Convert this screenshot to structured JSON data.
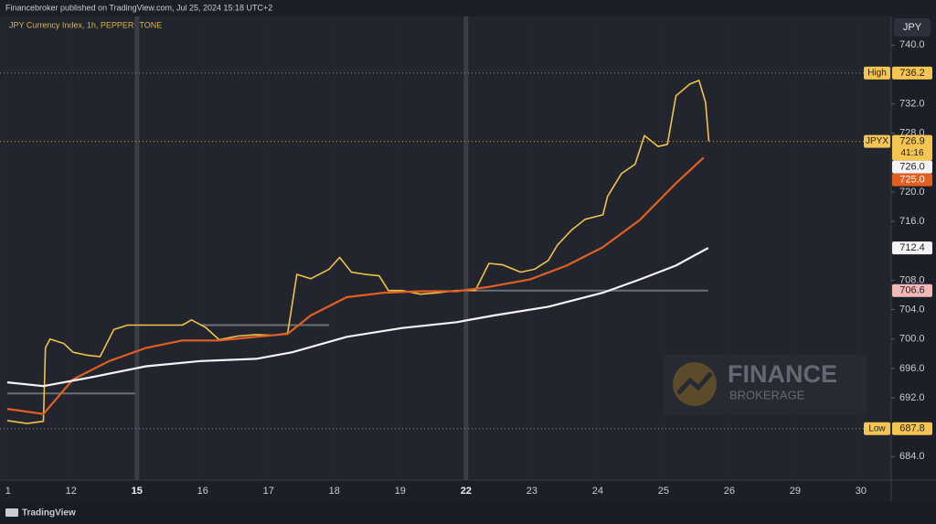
{
  "chart_data": {
    "type": "line",
    "header": "Financebroker published on TradingView.com, Jul 25, 2024 15:18 UTC+2",
    "title": "JPY Currency Index, 1h, PEPPERSTONE",
    "currency": "JPY",
    "footer": "TradingView",
    "watermark": [
      "FINANCE",
      "BROKERAGE"
    ],
    "xlim": [
      -0.08,
      13.46
    ],
    "xticks": [
      {
        "value": 0,
        "label": "1"
      },
      {
        "value": 1,
        "label": "12"
      },
      {
        "value": 2,
        "label": "15"
      },
      {
        "value": 3,
        "label": "16"
      },
      {
        "value": 4,
        "label": "17"
      },
      {
        "value": 5,
        "label": "18"
      },
      {
        "value": 6,
        "label": "19"
      },
      {
        "value": 7,
        "label": "22"
      },
      {
        "value": 8,
        "label": "23"
      },
      {
        "value": 9,
        "label": "24"
      },
      {
        "value": 10,
        "label": "25"
      },
      {
        "value": 11,
        "label": "26"
      },
      {
        "value": 12,
        "label": "29"
      },
      {
        "value": 13,
        "label": "30"
      }
    ],
    "ylim": [
      680.8,
      743.9
    ],
    "yticks": [
      {
        "value": 740,
        "label": "740.0"
      },
      {
        "value": 732,
        "label": "732.0"
      },
      {
        "value": 728,
        "label": "728.0"
      },
      {
        "value": 720,
        "label": "720.0"
      },
      {
        "value": 716,
        "label": "716.0"
      },
      {
        "value": 708,
        "label": "708.0"
      },
      {
        "value": 704,
        "label": "704.0"
      },
      {
        "value": 700,
        "label": "700.0"
      },
      {
        "value": 696,
        "label": "696.0"
      },
      {
        "value": 692,
        "label": "692.0"
      },
      {
        "value": 684,
        "label": "684.0"
      }
    ],
    "series": [
      {
        "name": "JPYX",
        "color": "#f0c24a",
        "x": [
          0.03,
          0.33,
          0.58,
          0.61,
          0.68,
          0.89,
          1.03,
          1.24,
          1.44,
          1.65,
          1.86,
          2.14,
          2.42,
          2.69,
          2.83,
          3.04,
          3.25,
          3.53,
          3.81,
          4.08,
          4.29,
          4.43,
          4.64,
          4.92,
          5.08,
          5.26,
          5.47,
          5.68,
          5.82,
          6.03,
          6.31,
          6.58,
          6.86,
          7.14,
          7.35,
          7.56,
          7.83,
          8.04,
          8.25,
          8.39,
          8.6,
          8.81,
          9.08,
          9.15,
          9.36,
          9.57,
          9.71,
          9.92,
          10.06,
          10.19,
          10.4,
          10.54,
          10.64,
          10.69
        ],
        "values": [
          688.9,
          688.5,
          688.8,
          698.8,
          700.0,
          699.4,
          698.2,
          697.8,
          697.6,
          701.3,
          701.9,
          701.9,
          701.9,
          701.9,
          702.6,
          701.6,
          699.9,
          700.4,
          700.6,
          700.5,
          700.8,
          708.8,
          708.2,
          709.5,
          711.1,
          709.1,
          708.8,
          708.6,
          706.6,
          706.6,
          706.1,
          706.3,
          706.6,
          706.6,
          710.3,
          710.1,
          709.1,
          709.5,
          710.7,
          712.8,
          714.8,
          716.3,
          716.9,
          719.4,
          722.5,
          723.8,
          727.7,
          726.2,
          726.5,
          733.1,
          734.7,
          735.2,
          732.2,
          726.9
        ]
      },
      {
        "color": "#e2601f",
        "x": [
          0.03,
          0.58,
          1.03,
          1.58,
          2.14,
          2.69,
          3.25,
          3.81,
          4.29,
          4.64,
          5.19,
          5.75,
          6.31,
          6.86,
          7.35,
          7.97,
          8.53,
          9.08,
          9.64,
          10.19,
          10.61
        ],
        "values": [
          690.5,
          689.8,
          694.5,
          697.0,
          698.8,
          699.8,
          699.8,
          700.3,
          700.7,
          703.2,
          705.7,
          706.3,
          706.5,
          706.5,
          707.1,
          708.1,
          710.0,
          712.5,
          716.2,
          721.2,
          724.7
        ]
      },
      {
        "color": "#f4f4f4",
        "x": [
          0.03,
          0.58,
          1.31,
          2.14,
          2.97,
          3.81,
          4.36,
          5.19,
          6.03,
          6.86,
          7.42,
          8.25,
          9.08,
          9.64,
          10.19,
          10.68
        ],
        "values": [
          694.1,
          693.6,
          694.8,
          696.3,
          697.0,
          697.3,
          698.2,
          700.3,
          701.5,
          702.3,
          703.2,
          704.4,
          706.3,
          708.1,
          710.0,
          712.4
        ]
      }
    ],
    "levels": [
      {
        "value": 692.6,
        "x": [
          0.03,
          1.97
        ]
      },
      {
        "value": 701.9,
        "x": [
          2.97,
          4.92
        ]
      },
      {
        "value": 706.6,
        "x": [
          7.14,
          10.68
        ]
      }
    ],
    "badges": [
      {
        "tag": "High",
        "value": 736.2,
        "label": "736.2",
        "bg": "#f5c451",
        "fg": "#1c1f27",
        "line": "#8a8f99"
      },
      {
        "tag": "JPYX",
        "value": 726.9,
        "label": "726.9",
        "sub": "41:16",
        "bg": "#f5c451",
        "fg": "#1c1f27",
        "line": "#c9a33c"
      },
      {
        "value": 726,
        "label": "726.0",
        "bg": "#f4f4f4",
        "fg": "#1c1f27"
      },
      {
        "value": 725,
        "label": "725.0",
        "bg": "#e2601f",
        "fg": "#ffffff"
      },
      {
        "value": 712.4,
        "label": "712.4",
        "bg": "#f4f4f4",
        "fg": "#1c1f27"
      },
      {
        "value": 706.6,
        "label": "706.6",
        "bg": "#f2b8b8",
        "fg": "#1c1f27"
      },
      {
        "tag": "Low",
        "value": 687.8,
        "label": "687.8",
        "bg": "#f5c451",
        "fg": "#1c1f27",
        "line": "#8a8f99"
      }
    ]
  }
}
